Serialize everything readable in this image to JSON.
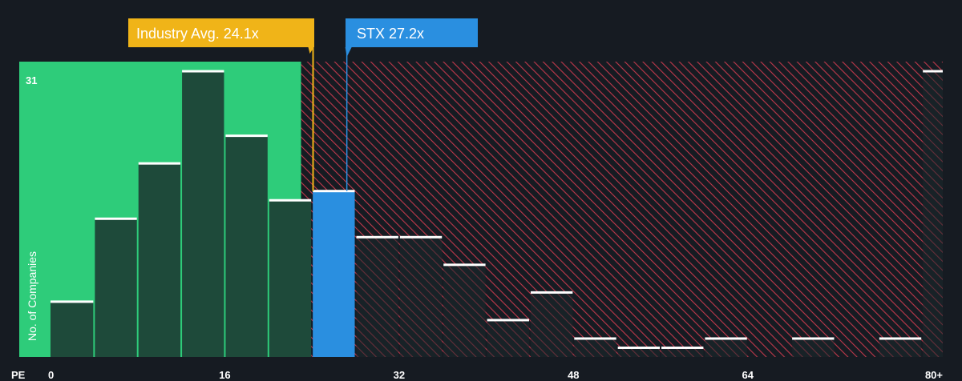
{
  "chart_data": {
    "type": "bar",
    "xlabel": "PE",
    "ylabel": "No. of Companies",
    "x_ticks": [
      "0",
      "16",
      "32",
      "48",
      "64",
      "80+"
    ],
    "x_tick_values": [
      0,
      16,
      32,
      48,
      64,
      80
    ],
    "xlim": [
      -4,
      82
    ],
    "ylim": [
      0,
      31
    ],
    "y_max_label": "31",
    "bin_width": 4,
    "bins": [
      {
        "start": 0,
        "end": 4,
        "value": 6
      },
      {
        "start": 4,
        "end": 8,
        "value": 15
      },
      {
        "start": 8,
        "end": 12,
        "value": 21
      },
      {
        "start": 12,
        "end": 16,
        "value": 31
      },
      {
        "start": 16,
        "end": 20,
        "value": 24
      },
      {
        "start": 20,
        "end": 24,
        "value": 17
      },
      {
        "start": 24,
        "end": 28,
        "value": 18
      },
      {
        "start": 28,
        "end": 32,
        "value": 13
      },
      {
        "start": 32,
        "end": 36,
        "value": 13
      },
      {
        "start": 36,
        "end": 40,
        "value": 10
      },
      {
        "start": 40,
        "end": 44,
        "value": 4
      },
      {
        "start": 44,
        "end": 48,
        "value": 7
      },
      {
        "start": 48,
        "end": 52,
        "value": 2
      },
      {
        "start": 52,
        "end": 56,
        "value": 1
      },
      {
        "start": 56,
        "end": 60,
        "value": 1
      },
      {
        "start": 60,
        "end": 64,
        "value": 2
      },
      {
        "start": 64,
        "end": 68,
        "value": 0
      },
      {
        "start": 68,
        "end": 72,
        "value": 2
      },
      {
        "start": 72,
        "end": 76,
        "value": 0
      },
      {
        "start": 76,
        "end": 80,
        "value": 2
      },
      {
        "start": 80,
        "end": 82,
        "value": 31
      }
    ],
    "industry_avg": {
      "label": "Industry Avg. 24.1x",
      "value": 24.1
    },
    "company": {
      "label": "STX 27.2x",
      "value": 27.2,
      "bin_start": 24
    },
    "colors": {
      "background": "#161b22",
      "below_avg_zone": "#2ecc7a",
      "bar_fill": "#1e4a3a",
      "bar_top": "#ffffff",
      "hatch": "#c0394b",
      "avg_callout": "#f0b418",
      "company_bar": "#2a8fe0"
    }
  }
}
